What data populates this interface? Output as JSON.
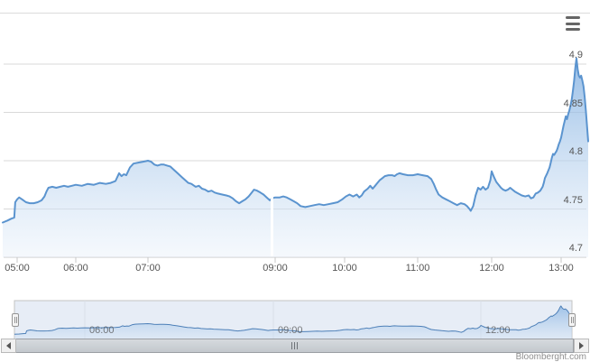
{
  "chart_data": {
    "type": "area",
    "title": "",
    "xlabel": "",
    "ylabel": "",
    "ylim": [
      4.7,
      4.92
    ],
    "y_axis_ticks": [
      "4.9",
      "4.85",
      "4.8",
      "4.75",
      "4.7"
    ],
    "y_axis_values": [
      4.9,
      4.85,
      4.8,
      4.75,
      4.7
    ],
    "x_axis_ticks": [
      "05:00",
      "06:00",
      "07:00",
      "09:00",
      "10:00",
      "11:00",
      "12:00",
      "13:00"
    ],
    "grid": "horizontal",
    "legend": "none",
    "data_gap_at": "08:57",
    "points": [
      [
        "04:45",
        4.736
      ],
      [
        "04:50",
        4.738
      ],
      [
        "04:54",
        4.74
      ],
      [
        "04:57",
        4.741
      ],
      [
        "04:58",
        4.757
      ],
      [
        "05:00",
        4.76
      ],
      [
        "05:02",
        4.762
      ],
      [
        "05:05",
        4.76
      ],
      [
        "05:09",
        4.757
      ],
      [
        "05:13",
        4.756
      ],
      [
        "05:17",
        4.756
      ],
      [
        "05:21",
        4.757
      ],
      [
        "05:25",
        4.759
      ],
      [
        "05:28",
        4.763
      ],
      [
        "05:30",
        4.768
      ],
      [
        "05:32",
        4.772
      ],
      [
        "05:36",
        4.773
      ],
      [
        "05:40",
        4.772
      ],
      [
        "05:44",
        4.773
      ],
      [
        "05:48",
        4.774
      ],
      [
        "05:52",
        4.773
      ],
      [
        "05:56",
        4.774
      ],
      [
        "06:00",
        4.775
      ],
      [
        "06:05",
        4.774
      ],
      [
        "06:10",
        4.776
      ],
      [
        "06:15",
        4.775
      ],
      [
        "06:20",
        4.777
      ],
      [
        "06:25",
        4.776
      ],
      [
        "06:29",
        4.777
      ],
      [
        "06:33",
        4.779
      ],
      [
        "06:36",
        4.787
      ],
      [
        "06:38",
        4.784
      ],
      [
        "06:40",
        4.786
      ],
      [
        "06:42",
        4.785
      ],
      [
        "06:45",
        4.793
      ],
      [
        "06:48",
        4.797
      ],
      [
        "06:52",
        4.798
      ],
      [
        "06:56",
        4.799
      ],
      [
        "07:00",
        4.8
      ],
      [
        "07:03",
        4.799
      ],
      [
        "07:06",
        4.796
      ],
      [
        "07:09",
        4.795
      ],
      [
        "07:12",
        4.796
      ],
      [
        "07:15",
        4.796
      ],
      [
        "07:18",
        4.795
      ],
      [
        "07:21",
        4.794
      ],
      [
        "07:24",
        4.791
      ],
      [
        "07:28",
        4.787
      ],
      [
        "07:32",
        4.783
      ],
      [
        "07:35",
        4.78
      ],
      [
        "07:38",
        4.777
      ],
      [
        "07:41",
        4.776
      ],
      [
        "07:45",
        4.773
      ],
      [
        "07:48",
        4.774
      ],
      [
        "07:51",
        4.771
      ],
      [
        "07:54",
        4.77
      ],
      [
        "07:57",
        4.768
      ],
      [
        "08:00",
        4.769
      ],
      [
        "08:03",
        4.767
      ],
      [
        "08:06",
        4.766
      ],
      [
        "08:10",
        4.765
      ],
      [
        "08:14",
        4.764
      ],
      [
        "08:17",
        4.763
      ],
      [
        "08:20",
        4.761
      ],
      [
        "08:23",
        4.758
      ],
      [
        "08:26",
        4.756
      ],
      [
        "08:29",
        4.758
      ],
      [
        "08:32",
        4.76
      ],
      [
        "08:35",
        4.763
      ],
      [
        "08:38",
        4.767
      ],
      [
        "08:40",
        4.77
      ],
      [
        "08:43",
        4.769
      ],
      [
        "08:46",
        4.767
      ],
      [
        "08:49",
        4.765
      ],
      [
        "08:52",
        4.762
      ],
      [
        "08:55",
        4.759
      ],
      [
        "08:57",
        4.761
      ],
      [
        "09:00",
        4.762
      ],
      [
        "09:04",
        4.762
      ],
      [
        "09:07",
        4.763
      ],
      [
        "09:10",
        4.762
      ],
      [
        "09:13",
        4.76
      ],
      [
        "09:16",
        4.758
      ],
      [
        "09:19",
        4.756
      ],
      [
        "09:22",
        4.753
      ],
      [
        "09:26",
        4.752
      ],
      [
        "09:30",
        4.753
      ],
      [
        "09:34",
        4.754
      ],
      [
        "09:38",
        4.755
      ],
      [
        "09:42",
        4.754
      ],
      [
        "09:46",
        4.755
      ],
      [
        "09:50",
        4.756
      ],
      [
        "09:54",
        4.757
      ],
      [
        "09:58",
        4.76
      ],
      [
        "10:01",
        4.763
      ],
      [
        "10:04",
        4.765
      ],
      [
        "10:07",
        4.763
      ],
      [
        "10:10",
        4.765
      ],
      [
        "10:12",
        4.762
      ],
      [
        "10:14",
        4.764
      ],
      [
        "10:16",
        4.768
      ],
      [
        "10:19",
        4.771
      ],
      [
        "10:21",
        4.774
      ],
      [
        "10:23",
        4.771
      ],
      [
        "10:25",
        4.774
      ],
      [
        "10:27",
        4.777
      ],
      [
        "10:29",
        4.78
      ],
      [
        "10:31",
        4.782
      ],
      [
        "10:33",
        4.784
      ],
      [
        "10:36",
        4.785
      ],
      [
        "10:39",
        4.785
      ],
      [
        "10:41",
        4.784
      ],
      [
        "10:43",
        4.786
      ],
      [
        "10:45",
        4.787
      ],
      [
        "10:48",
        4.786
      ],
      [
        "10:52",
        4.785
      ],
      [
        "10:56",
        4.785
      ],
      [
        "11:00",
        4.786
      ],
      [
        "11:04",
        4.785
      ],
      [
        "11:08",
        4.784
      ],
      [
        "11:11",
        4.781
      ],
      [
        "11:13",
        4.776
      ],
      [
        "11:15",
        4.77
      ],
      [
        "11:17",
        4.765
      ],
      [
        "11:20",
        4.762
      ],
      [
        "11:23",
        4.76
      ],
      [
        "11:26",
        4.758
      ],
      [
        "11:29",
        4.756
      ],
      [
        "11:32",
        4.754
      ],
      [
        "11:35",
        4.756
      ],
      [
        "11:38",
        4.755
      ],
      [
        "11:40",
        4.753
      ],
      [
        "11:42",
        4.75
      ],
      [
        "11:43",
        4.748
      ],
      [
        "11:45",
        4.753
      ],
      [
        "11:47",
        4.764
      ],
      [
        "11:49",
        4.772
      ],
      [
        "11:51",
        4.77
      ],
      [
        "11:53",
        4.773
      ],
      [
        "11:55",
        4.77
      ],
      [
        "11:57",
        4.772
      ],
      [
        "11:59",
        4.78
      ],
      [
        "12:00",
        4.789
      ],
      [
        "12:02",
        4.783
      ],
      [
        "12:04",
        4.778
      ],
      [
        "12:06",
        4.775
      ],
      [
        "12:08",
        4.772
      ],
      [
        "12:10",
        4.77
      ],
      [
        "12:12",
        4.769
      ],
      [
        "12:14",
        4.77
      ],
      [
        "12:16",
        4.772
      ],
      [
        "12:18",
        4.77
      ],
      [
        "12:20",
        4.768
      ],
      [
        "12:23",
        4.766
      ],
      [
        "12:26",
        4.764
      ],
      [
        "12:29",
        4.763
      ],
      [
        "12:32",
        4.764
      ],
      [
        "12:34",
        4.761
      ],
      [
        "12:36",
        4.762
      ],
      [
        "12:38",
        4.766
      ],
      [
        "12:40",
        4.767
      ],
      [
        "12:42",
        4.769
      ],
      [
        "12:44",
        4.773
      ],
      [
        "12:45",
        4.777
      ],
      [
        "12:46",
        4.782
      ],
      [
        "12:48",
        4.787
      ],
      [
        "12:50",
        4.793
      ],
      [
        "12:51",
        4.798
      ],
      [
        "12:52",
        4.803
      ],
      [
        "12:53",
        4.807
      ],
      [
        "12:54",
        4.806
      ],
      [
        "12:55",
        4.808
      ],
      [
        "12:56",
        4.81
      ],
      [
        "12:57",
        4.813
      ],
      [
        "12:58",
        4.817
      ],
      [
        "12:59",
        4.82
      ],
      [
        "13:00",
        4.824
      ],
      [
        "13:01",
        4.83
      ],
      [
        "13:02",
        4.836
      ],
      [
        "13:03",
        4.841
      ],
      [
        "13:04",
        4.846
      ],
      [
        "13:05",
        4.843
      ],
      [
        "13:06",
        4.848
      ],
      [
        "13:07",
        4.852
      ],
      [
        "13:08",
        4.857
      ],
      [
        "13:09",
        4.863
      ],
      [
        "13:10",
        4.872
      ],
      [
        "13:11",
        4.882
      ],
      [
        "13:12",
        4.896
      ],
      [
        "13:13",
        4.906
      ],
      [
        "13:14",
        4.895
      ],
      [
        "13:15",
        4.888
      ],
      [
        "13:16",
        4.886
      ],
      [
        "13:17",
        4.888
      ],
      [
        "13:18",
        4.883
      ],
      [
        "13:19",
        4.877
      ],
      [
        "13:20",
        4.866
      ],
      [
        "13:21",
        4.852
      ],
      [
        "13:22",
        4.836
      ],
      [
        "13:23",
        4.82
      ]
    ],
    "navigator": {
      "labels": [
        "06:00",
        "09:00",
        "12:00"
      ],
      "scrollbar": {
        "left_arrow": "left-triangle",
        "right_arrow": "right-triangle",
        "grip": "|||"
      }
    },
    "colors": {
      "line": "#5b94cf",
      "area_top": "rgba(122,171,223,0.80)",
      "area_bottom": "rgba(233,241,250,0.45)",
      "gridline": "#d9d9d9",
      "axis_line": "#c9c9c9",
      "nav_line": "#4e80b8",
      "nav_fill": "rgba(120,165,215,0.50)",
      "nav_mask": "rgba(108,140,200,0.16)",
      "label": "#555555"
    }
  },
  "ui": {
    "menu_button_icon": "hamburger-menu-icon",
    "credit": "Bloomberght.com"
  }
}
